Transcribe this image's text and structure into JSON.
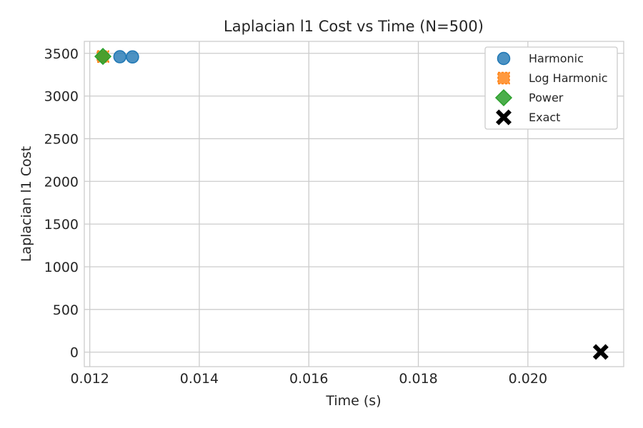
{
  "chart_data": {
    "type": "scatter",
    "title": "Laplacian l1 Cost vs Time (N=500)",
    "xlabel": "Time (s)",
    "ylabel": "Laplacian l1 Cost",
    "xlim": [
      0.0119,
      0.02175
    ],
    "ylim": [
      -170,
      3640
    ],
    "xticks": [
      0.012,
      0.014,
      0.016,
      0.018,
      0.02
    ],
    "xtick_labels": [
      "0.012",
      "0.014",
      "0.016",
      "0.018",
      "0.020"
    ],
    "yticks": [
      0,
      500,
      1000,
      1500,
      2000,
      2500,
      3000,
      3500
    ],
    "ytick_labels": [
      "0",
      "500",
      "1000",
      "1500",
      "2000",
      "2500",
      "3000",
      "3500"
    ],
    "grid": true,
    "legend_position": "top-right",
    "series": [
      {
        "name": "Harmonic",
        "marker": "circle",
        "color": "#1f77b4",
        "points": [
          [
            0.01255,
            3460
          ],
          [
            0.01278,
            3458
          ]
        ]
      },
      {
        "name": "Log Harmonic",
        "marker": "square",
        "color": "#ff7f0e",
        "points": [
          [
            0.01224,
            3462
          ]
        ]
      },
      {
        "name": "Power",
        "marker": "diamond",
        "color": "#2ca02c",
        "points": [
          [
            0.01224,
            3464
          ]
        ]
      },
      {
        "name": "Exact",
        "marker": "x",
        "color": "#000000",
        "points": [
          [
            0.02133,
            2
          ]
        ]
      }
    ]
  }
}
